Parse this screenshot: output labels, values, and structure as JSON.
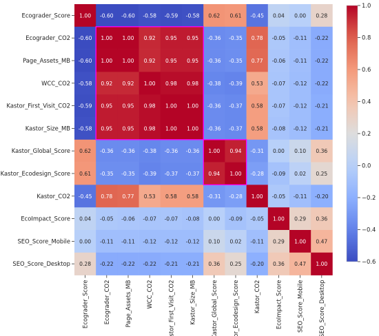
{
  "chart_data": {
    "type": "heatmap",
    "title": "",
    "xlabel": "",
    "ylabel": "",
    "variables": [
      "Ecograder_Score",
      "Ecograder_CO2",
      "Page_Assets_MB",
      "WCC_CO2",
      "Kastor_First_Visit_CO2",
      "Kastor_Size_MB",
      "Kastor_Global_Score",
      "Kastor_Ecodesign_Score",
      "Kastor_CO2",
      "EcoImpact_Score",
      "SEO_Score_Mobile",
      "SEO_Score_Desktop"
    ],
    "matrix": [
      [
        1.0,
        -0.6,
        -0.6,
        -0.58,
        -0.59,
        -0.58,
        0.62,
        0.61,
        -0.45,
        0.04,
        0.0,
        0.28
      ],
      [
        -0.6,
        1.0,
        1.0,
        0.92,
        0.95,
        0.95,
        -0.36,
        -0.35,
        0.78,
        -0.05,
        -0.11,
        -0.22
      ],
      [
        -0.6,
        1.0,
        1.0,
        0.92,
        0.95,
        0.95,
        -0.36,
        -0.35,
        0.77,
        -0.06,
        -0.11,
        -0.22
      ],
      [
        -0.58,
        0.92,
        0.92,
        1.0,
        0.98,
        0.98,
        -0.38,
        -0.39,
        0.53,
        -0.07,
        -0.12,
        -0.22
      ],
      [
        -0.59,
        0.95,
        0.95,
        0.98,
        1.0,
        1.0,
        -0.36,
        -0.37,
        0.58,
        -0.07,
        -0.12,
        -0.21
      ],
      [
        -0.58,
        0.95,
        0.95,
        0.98,
        1.0,
        1.0,
        -0.36,
        -0.37,
        0.58,
        -0.08,
        -0.12,
        -0.21
      ],
      [
        0.62,
        -0.36,
        -0.36,
        -0.38,
        -0.36,
        -0.36,
        1.0,
        0.94,
        -0.31,
        0.0,
        0.1,
        0.36
      ],
      [
        0.61,
        -0.35,
        -0.35,
        -0.39,
        -0.37,
        -0.37,
        0.94,
        1.0,
        -0.28,
        -0.09,
        0.02,
        0.25
      ],
      [
        -0.45,
        0.78,
        0.77,
        0.53,
        0.58,
        0.58,
        -0.31,
        -0.28,
        1.0,
        -0.05,
        -0.11,
        -0.2
      ],
      [
        0.04,
        -0.05,
        -0.06,
        -0.07,
        -0.07,
        -0.08,
        0.0,
        -0.09,
        -0.05,
        1.0,
        0.29,
        0.36
      ],
      [
        0.0,
        -0.11,
        -0.11,
        -0.12,
        -0.12,
        -0.12,
        0.1,
        0.02,
        -0.11,
        0.29,
        1.0,
        0.47
      ],
      [
        0.28,
        -0.22,
        -0.22,
        -0.22,
        -0.21,
        -0.21,
        0.36,
        0.25,
        -0.2,
        0.36,
        0.47,
        1.0
      ]
    ],
    "cell_labels": [
      [
        "1.00",
        "-0.60",
        "-0.60",
        "-0.58",
        "-0.59",
        "-0.58",
        "0.62",
        "0.61",
        "-0.45",
        "0.04",
        "0.00",
        "0.28"
      ],
      [
        "-0.60",
        "1.00",
        "1.00",
        "0.92",
        "0.95",
        "0.95",
        "-0.36",
        "-0.35",
        "0.78",
        "-0.05",
        "-0.11",
        "-0.22"
      ],
      [
        "-0.60",
        "1.00",
        "1.00",
        "0.92",
        "0.95",
        "0.95",
        "-0.36",
        "-0.35",
        "0.77",
        "-0.06",
        "-0.11",
        "-0.22"
      ],
      [
        "-0.58",
        "0.92",
        "0.92",
        "1.00",
        "0.98",
        "0.98",
        "-0.38",
        "-0.39",
        "0.53",
        "-0.07",
        "-0.12",
        "-0.22"
      ],
      [
        "-0.59",
        "0.95",
        "0.95",
        "0.98",
        "1.00",
        "1.00",
        "-0.36",
        "-0.37",
        "0.58",
        "-0.07",
        "-0.12",
        "-0.21"
      ],
      [
        "-0.58",
        "0.95",
        "0.95",
        "0.98",
        "1.00",
        "1.00",
        "-0.36",
        "-0.37",
        "0.58",
        "-0.08",
        "-0.12",
        "-0.21"
      ],
      [
        "0.62",
        "-0.36",
        "-0.36",
        "-0.38",
        "-0.36",
        "-0.36",
        "1.00",
        "0.94",
        "-0.31",
        "0.00",
        "0.10",
        "0.36"
      ],
      [
        "0.61",
        "-0.35",
        "-0.35",
        "-0.39",
        "-0.37",
        "-0.37",
        "0.94",
        "1.00",
        "-0.28",
        "-0.09",
        "0.02",
        "0.25"
      ],
      [
        "-0.45",
        "0.78",
        "0.77",
        "0.53",
        "0.58",
        "0.58",
        "-0.31",
        "-0.28",
        "1.00",
        "-0.05",
        "-0.11",
        "-0.20"
      ],
      [
        "0.04",
        "-0.05",
        "-0.06",
        "-0.07",
        "-0.07",
        "-0.08",
        "0.00",
        "-0.09",
        "-0.05",
        "1.00",
        "0.29",
        "0.36"
      ],
      [
        "0.00",
        "-0.11",
        "-0.11",
        "-0.12",
        "-0.12",
        "-0.12",
        "0.10",
        "0.02",
        "-0.11",
        "0.29",
        "1.00",
        "0.47"
      ],
      [
        "0.28",
        "-0.22",
        "-0.22",
        "-0.22",
        "-0.21",
        "-0.21",
        "0.36",
        "0.25",
        "-0.20",
        "0.36",
        "0.47",
        "1.00"
      ]
    ],
    "colormap": "coolwarm",
    "colorbar": {
      "range": [
        -0.6,
        1.0
      ],
      "ticks": [
        -0.6,
        -0.4,
        -0.2,
        0.0,
        0.2,
        0.4,
        0.6,
        0.8,
        1.0
      ],
      "tick_labels": [
        "−0.6",
        "−0.4",
        "−0.2",
        "0.0",
        "0.2",
        "0.4",
        "0.6",
        "0.8",
        "1.0"
      ]
    },
    "highlight_groups": [
      {
        "rows": [
          1,
          5
        ],
        "cols": [
          1,
          5
        ],
        "color": "#ff00ff"
      },
      {
        "rows": [
          6,
          7
        ],
        "cols": [
          6,
          7
        ],
        "color": "#ff00ff"
      }
    ],
    "grid": false,
    "legend": "none"
  }
}
